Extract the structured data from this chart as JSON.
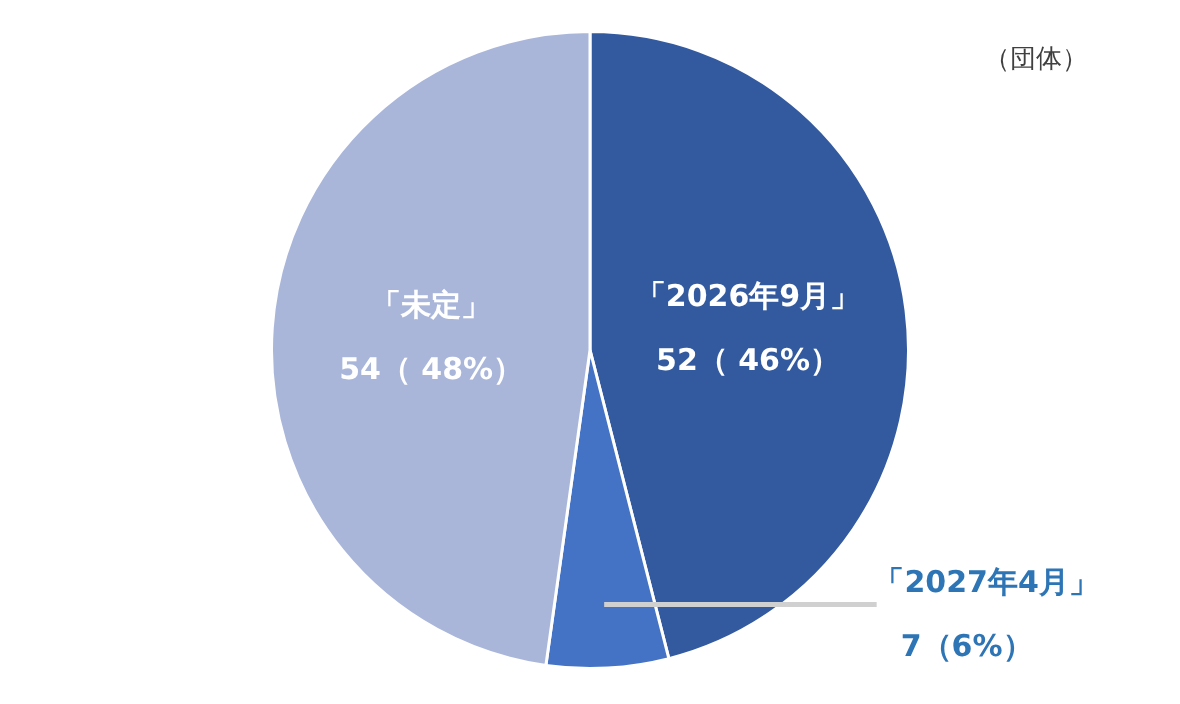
{
  "chart_data": {
    "type": "pie",
    "categories": [
      "「2026年9月」",
      "「2027年4月」",
      "「未定」"
    ],
    "values": [
      52,
      7,
      54
    ],
    "colors": [
      "#335a9f",
      "#4472c4",
      "#a9b6da"
    ],
    "value_labels": [
      "52（ 46%）",
      "7（6%）",
      "54（ 48%）"
    ],
    "annotations": [
      "（団体）"
    ],
    "legend": false
  }
}
